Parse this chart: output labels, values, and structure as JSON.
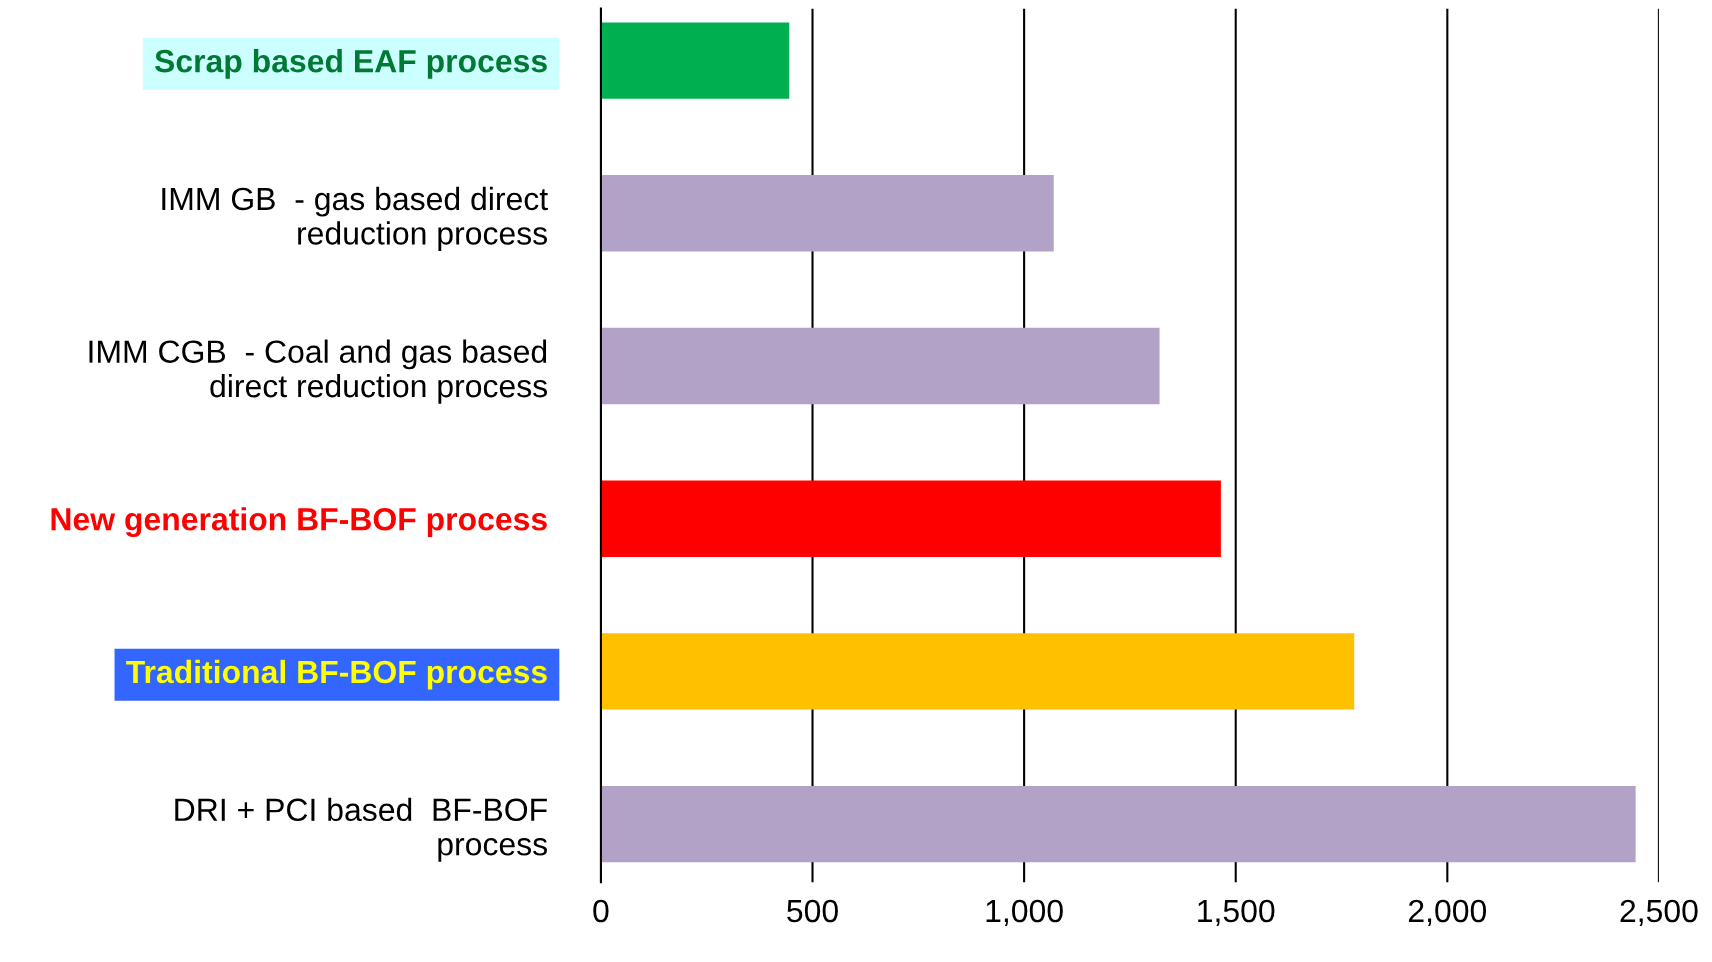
{
  "chart_data": {
    "type": "bar",
    "orientation": "horizontal",
    "categories": [
      "Scrap based EAF process",
      "IMM GB  - gas based direct\nreduction process",
      "IMM CGB  - Coal and gas based\ndirect reduction process",
      "New generation BF-BOF process",
      "Traditional BF-BOF process",
      "DRI + PCI based  BF-BOF\nprocess"
    ],
    "values": [
      445,
      1070,
      1320,
      1465,
      1780,
      2445
    ],
    "colors": [
      "#00b050",
      "#b3a2c7",
      "#b3a2c7",
      "#ff0000",
      "#ffc000",
      "#b3a2c7"
    ],
    "xlim": [
      0,
      2500
    ],
    "xticks": [
      {
        "value": 0,
        "label": "0"
      },
      {
        "value": 500,
        "label": "500"
      },
      {
        "value": 1000,
        "label": "1,000"
      },
      {
        "value": 1500,
        "label": "1,500"
      },
      {
        "value": 2000,
        "label": "2,000"
      },
      {
        "value": 2500,
        "label": "2,500"
      }
    ],
    "grid": "x",
    "legend": false
  }
}
